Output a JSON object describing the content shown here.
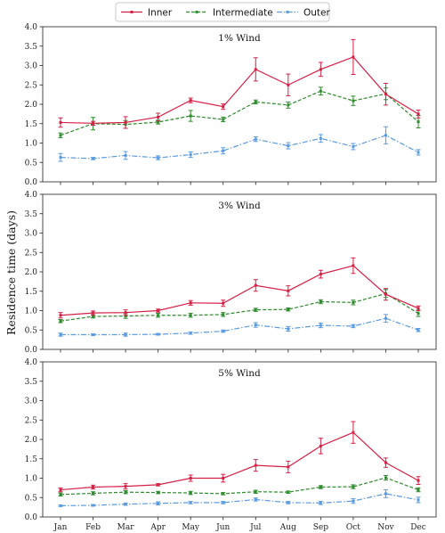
{
  "chart_data": {
    "type": "line",
    "ylabel": "Residence time (days)",
    "categories": [
      "Jan",
      "Feb",
      "Mar",
      "Apr",
      "May",
      "Jun",
      "Jul",
      "Aug",
      "Sep",
      "Oct",
      "Nov",
      "Dec"
    ],
    "ylim": [
      0,
      4.0
    ],
    "yticks": [
      "0.0",
      "0.5",
      "1.0",
      "1.5",
      "2.0",
      "2.5",
      "3.0",
      "3.5",
      "4.0"
    ],
    "legend": {
      "placement": "top-center"
    },
    "series_styles": [
      {
        "name": "Inner",
        "color": "#d62045",
        "dash": "solid"
      },
      {
        "name": "Intermediate",
        "color": "#2e8b2e",
        "dash": "dashed"
      },
      {
        "name": "Outer",
        "color": "#5b9be0",
        "dash": "dashdot"
      }
    ],
    "panels": [
      {
        "title": "1% Wind",
        "series": [
          {
            "name": "Inner",
            "values": [
              1.53,
              1.51,
              1.53,
              1.67,
              2.1,
              1.94,
              2.9,
              2.5,
              2.9,
              3.22,
              2.26,
              1.75
            ],
            "errors": [
              0.12,
              0.05,
              0.15,
              0.1,
              0.06,
              0.07,
              0.3,
              0.28,
              0.18,
              0.45,
              0.28,
              0.1
            ]
          },
          {
            "name": "Intermediate",
            "values": [
              1.2,
              1.5,
              1.48,
              1.54,
              1.7,
              1.61,
              2.06,
              1.98,
              2.34,
              2.09,
              2.27,
              1.55
            ],
            "errors": [
              0.06,
              0.16,
              0.1,
              0.05,
              0.14,
              0.06,
              0.05,
              0.08,
              0.1,
              0.12,
              0.15,
              0.16
            ]
          },
          {
            "name": "Outer",
            "values": [
              0.63,
              0.6,
              0.68,
              0.62,
              0.7,
              0.8,
              1.1,
              0.93,
              1.12,
              0.91,
              1.2,
              0.76
            ],
            "errors": [
              0.1,
              0.03,
              0.1,
              0.05,
              0.07,
              0.08,
              0.06,
              0.08,
              0.1,
              0.08,
              0.22,
              0.07
            ]
          }
        ]
      },
      {
        "title": "3% Wind",
        "series": [
          {
            "name": "Inner",
            "values": [
              0.88,
              0.94,
              0.95,
              1.0,
              1.2,
              1.19,
              1.65,
              1.51,
              1.94,
              2.16,
              1.42,
              1.06
            ],
            "errors": [
              0.07,
              0.05,
              0.07,
              0.04,
              0.06,
              0.08,
              0.15,
              0.13,
              0.1,
              0.2,
              0.15,
              0.06
            ]
          },
          {
            "name": "Intermediate",
            "values": [
              0.73,
              0.85,
              0.86,
              0.88,
              0.88,
              0.9,
              1.02,
              1.03,
              1.23,
              1.21,
              1.44,
              0.93
            ],
            "errors": [
              0.04,
              0.04,
              0.06,
              0.05,
              0.05,
              0.05,
              0.04,
              0.04,
              0.05,
              0.06,
              0.1,
              0.08
            ]
          },
          {
            "name": "Outer",
            "values": [
              0.38,
              0.38,
              0.38,
              0.39,
              0.42,
              0.47,
              0.63,
              0.53,
              0.62,
              0.6,
              0.8,
              0.5
            ],
            "errors": [
              0.04,
              0.02,
              0.04,
              0.02,
              0.03,
              0.03,
              0.06,
              0.06,
              0.06,
              0.04,
              0.1,
              0.04
            ]
          }
        ]
      },
      {
        "title": "5% Wind",
        "series": [
          {
            "name": "Inner",
            "values": [
              0.7,
              0.77,
              0.79,
              0.83,
              1.0,
              1.0,
              1.33,
              1.29,
              1.83,
              2.18,
              1.4,
              0.94
            ],
            "errors": [
              0.05,
              0.05,
              0.07,
              0.03,
              0.08,
              0.1,
              0.15,
              0.15,
              0.2,
              0.28,
              0.12,
              0.1
            ]
          },
          {
            "name": "Intermediate",
            "values": [
              0.58,
              0.61,
              0.64,
              0.63,
              0.62,
              0.6,
              0.65,
              0.64,
              0.77,
              0.78,
              1.01,
              0.7
            ],
            "errors": [
              0.04,
              0.04,
              0.04,
              0.03,
              0.04,
              0.03,
              0.04,
              0.03,
              0.04,
              0.05,
              0.06,
              0.05
            ]
          },
          {
            "name": "Outer",
            "values": [
              0.29,
              0.3,
              0.33,
              0.35,
              0.37,
              0.37,
              0.45,
              0.37,
              0.36,
              0.41,
              0.6,
              0.44
            ],
            "errors": [
              0.02,
              0.02,
              0.03,
              0.04,
              0.03,
              0.03,
              0.04,
              0.03,
              0.04,
              0.06,
              0.1,
              0.07
            ]
          }
        ]
      }
    ]
  }
}
